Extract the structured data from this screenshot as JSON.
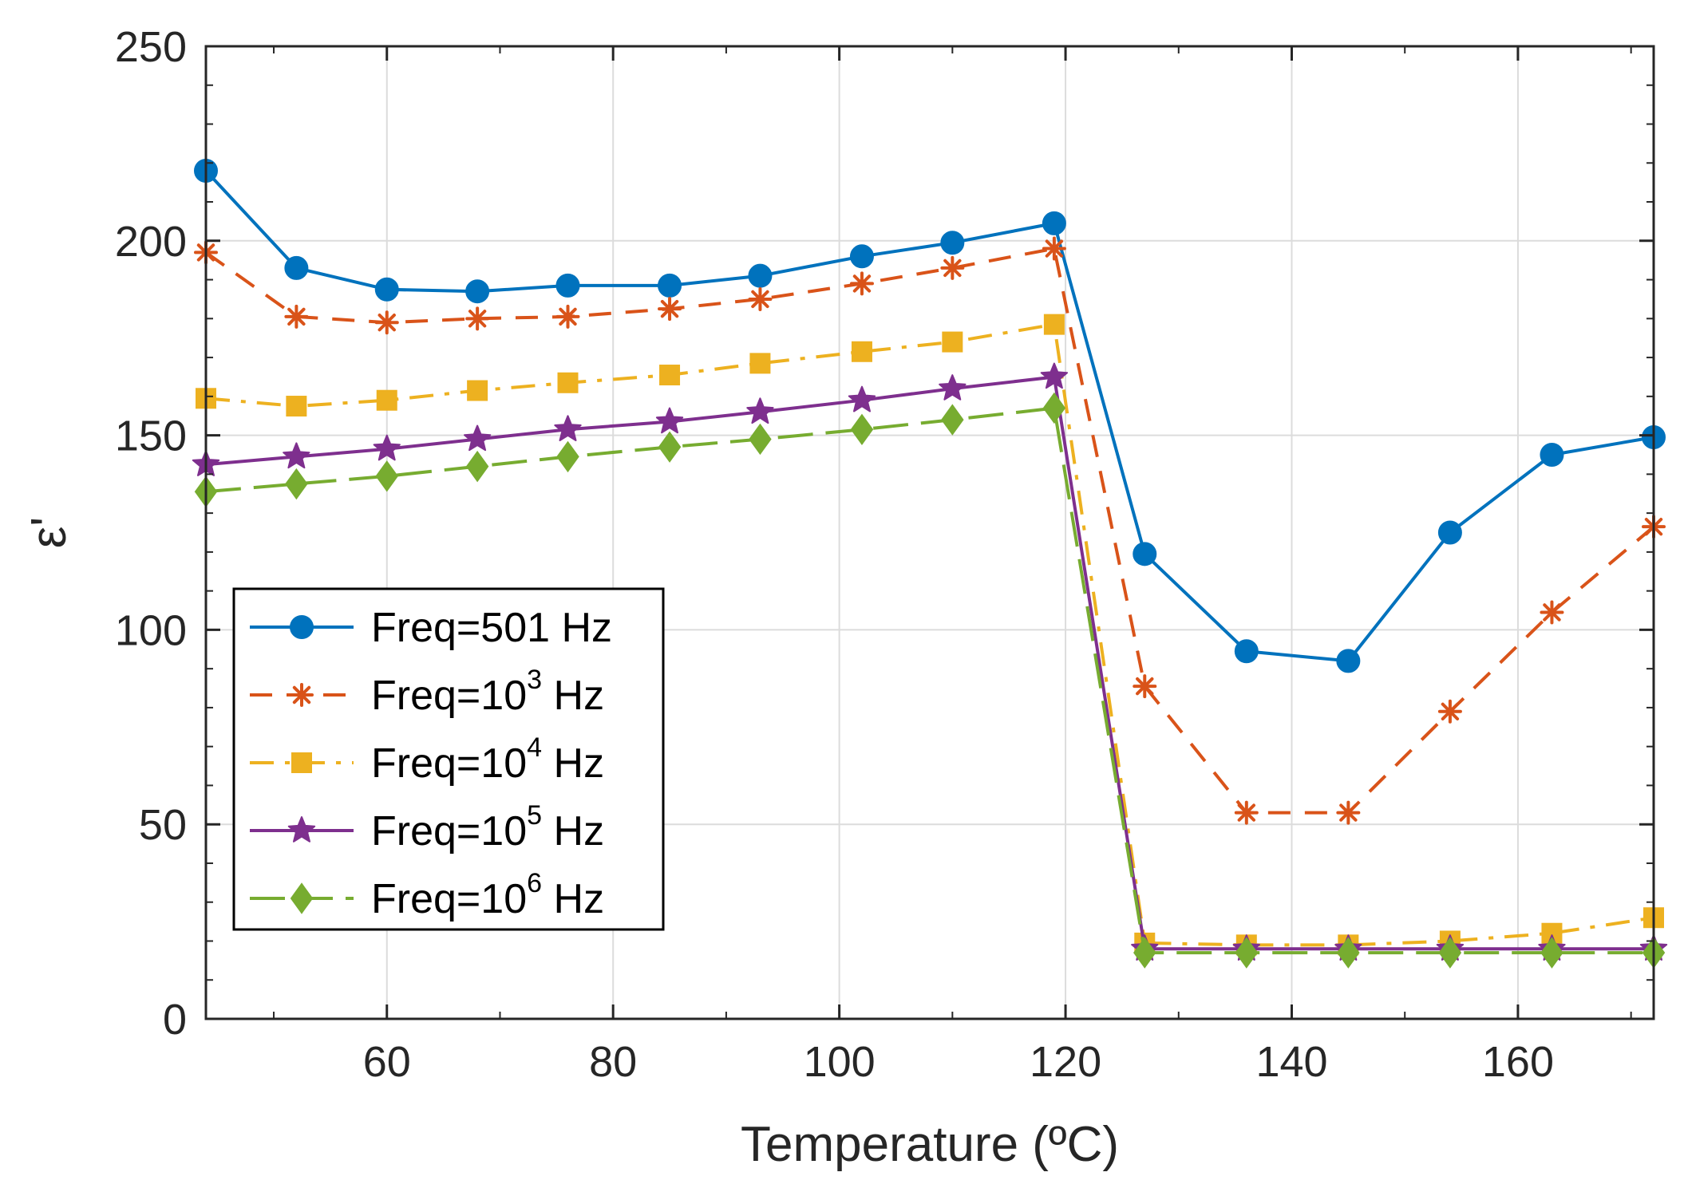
{
  "chart_data": {
    "type": "line",
    "xlabel": "Temperature (ºC)",
    "ylabel": "ε'",
    "xlim": [
      44,
      172
    ],
    "ylim": [
      0,
      250
    ],
    "xticks": [
      60,
      80,
      100,
      120,
      140,
      160
    ],
    "yticks": [
      0,
      50,
      100,
      150,
      200,
      250
    ],
    "grid": true,
    "legend_position": "lower-left",
    "x": [
      44,
      52,
      60,
      68,
      76,
      85,
      93,
      102,
      110,
      119,
      127,
      136,
      145,
      154,
      163,
      172
    ],
    "series": [
      {
        "name": "Freq=501 Hz",
        "name_base": "Freq=501 Hz",
        "name_exp": "",
        "name_suffix": "",
        "color": "#0072BD",
        "line": "solid",
        "marker": "circle",
        "values": [
          218,
          193,
          187.5,
          187,
          188.5,
          188.5,
          191,
          196,
          199.5,
          204.5,
          119.5,
          94.5,
          92,
          125,
          145,
          149.5
        ]
      },
      {
        "name": "Freq=10^3 Hz",
        "name_base": "Freq=10",
        "name_exp": "3",
        "name_suffix": " Hz",
        "color": "#D95319",
        "line": "dashed",
        "marker": "asterisk",
        "values": [
          197,
          180.5,
          179,
          180,
          180.5,
          182.5,
          185,
          189,
          193,
          198,
          85.5,
          53,
          53,
          79,
          104.5,
          126.5
        ]
      },
      {
        "name": "Freq=10^4 Hz",
        "name_base": "Freq=10",
        "name_exp": "4",
        "name_suffix": " Hz",
        "color": "#EDB120",
        "line": "dashdot",
        "marker": "square",
        "values": [
          159.5,
          157.5,
          159,
          161.5,
          163.5,
          165.5,
          168.5,
          171.5,
          174,
          178.5,
          19.5,
          19,
          19,
          20,
          22,
          26
        ]
      },
      {
        "name": "Freq=10^5 Hz",
        "name_base": "Freq=10",
        "name_exp": "5",
        "name_suffix": " Hz",
        "color": "#7E2F8E",
        "line": "solid",
        "marker": "star",
        "values": [
          142.5,
          144.5,
          146.5,
          149,
          151.5,
          153.5,
          156,
          159,
          162,
          165,
          18,
          18,
          18,
          18,
          18,
          18
        ]
      },
      {
        "name": "Freq=10^6 Hz",
        "name_base": "Freq=10",
        "name_exp": "6",
        "name_suffix": " Hz",
        "color": "#77AC30",
        "line": "longdash",
        "marker": "diamond",
        "values": [
          135.5,
          137.5,
          139.5,
          142,
          144.5,
          147,
          149,
          151.5,
          154,
          157,
          17,
          17,
          17,
          17,
          17,
          17
        ]
      }
    ]
  }
}
